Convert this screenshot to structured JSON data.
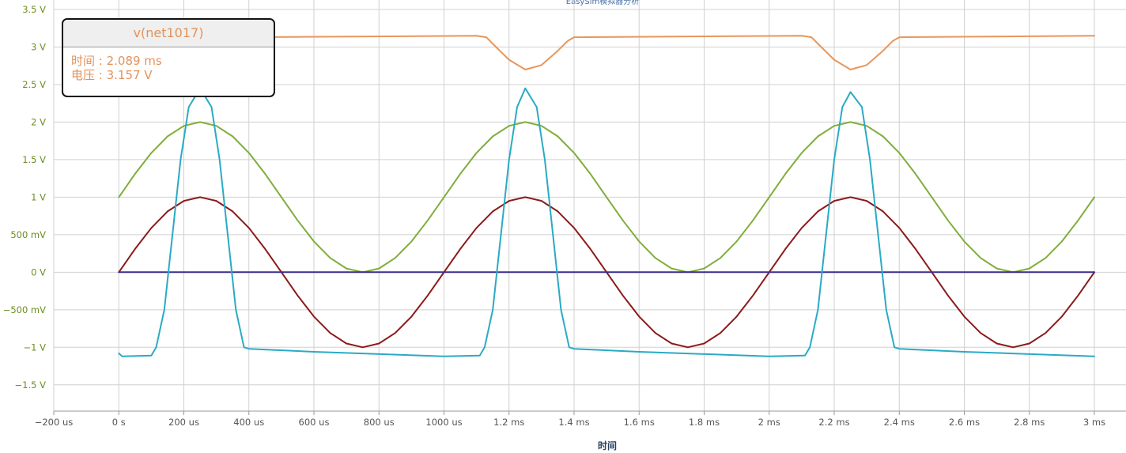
{
  "chart_data": {
    "type": "line",
    "title": "EasySim模拟器分析",
    "xlabel": "时间",
    "ylabel": "",
    "xlim": [
      -200,
      3000
    ],
    "ylim": [
      -1.85,
      3.5
    ],
    "grid": true,
    "y_ticks": [
      {
        "v": 3.5,
        "label": "3.5 V"
      },
      {
        "v": 3,
        "label": "3 V"
      },
      {
        "v": 2.5,
        "label": "2.5 V"
      },
      {
        "v": 2,
        "label": "2 V"
      },
      {
        "v": 1.5,
        "label": "1.5 V"
      },
      {
        "v": 1,
        "label": "1 V"
      },
      {
        "v": 0.5,
        "label": "500 mV"
      },
      {
        "v": 0,
        "label": "0 V"
      },
      {
        "v": -0.5,
        "label": "−500 mV"
      },
      {
        "v": -1,
        "label": "−1 V"
      },
      {
        "v": -1.5,
        "label": "−1.5 V"
      }
    ],
    "x_ticks": [
      {
        "v": -200,
        "label": "−200 us"
      },
      {
        "v": 0,
        "label": "0 s"
      },
      {
        "v": 200,
        "label": "200 us"
      },
      {
        "v": 400,
        "label": "400 us"
      },
      {
        "v": 600,
        "label": "600 us"
      },
      {
        "v": 800,
        "label": "800 us"
      },
      {
        "v": 1000,
        "label": "1000 us"
      },
      {
        "v": 1200,
        "label": "1.2 ms"
      },
      {
        "v": 1400,
        "label": "1.4 ms"
      },
      {
        "v": 1600,
        "label": "1.6 ms"
      },
      {
        "v": 1800,
        "label": "1.8 ms"
      },
      {
        "v": 2000,
        "label": "2 ms"
      },
      {
        "v": 2200,
        "label": "2.2 ms"
      },
      {
        "v": 2400,
        "label": "2.4 ms"
      },
      {
        "v": 2600,
        "label": "2.6 ms"
      },
      {
        "v": 2800,
        "label": "2.8 ms"
      },
      {
        "v": 3000,
        "label": "3 ms"
      }
    ],
    "series": [
      {
        "name": "v(net1017)",
        "color": "#e8965a",
        "points": [
          [
            400,
            3.13
          ],
          [
            1100,
            3.15
          ],
          [
            1130,
            3.13
          ],
          [
            1160,
            3.0
          ],
          [
            1200,
            2.83
          ],
          [
            1250,
            2.7
          ],
          [
            1300,
            2.76
          ],
          [
            1350,
            2.95
          ],
          [
            1380,
            3.08
          ],
          [
            1400,
            3.13
          ],
          [
            2100,
            3.15
          ],
          [
            2130,
            3.13
          ],
          [
            2160,
            3.0
          ],
          [
            2200,
            2.83
          ],
          [
            2250,
            2.7
          ],
          [
            2300,
            2.76
          ],
          [
            2350,
            2.95
          ],
          [
            2380,
            3.08
          ],
          [
            2400,
            3.13
          ],
          [
            3000,
            3.15
          ]
        ]
      },
      {
        "color": "#7fae3a",
        "points": [
          [
            0,
            1.0
          ],
          [
            50,
            1.31
          ],
          [
            100,
            1.59
          ],
          [
            150,
            1.81
          ],
          [
            200,
            1.95
          ],
          [
            250,
            2.0
          ],
          [
            300,
            1.95
          ],
          [
            350,
            1.81
          ],
          [
            400,
            1.59
          ],
          [
            450,
            1.31
          ],
          [
            500,
            1.0
          ],
          [
            550,
            0.69
          ],
          [
            600,
            0.41
          ],
          [
            650,
            0.19
          ],
          [
            700,
            0.05
          ],
          [
            750,
            0.0
          ],
          [
            800,
            0.05
          ],
          [
            850,
            0.19
          ],
          [
            900,
            0.41
          ],
          [
            950,
            0.69
          ],
          [
            1000,
            1.0
          ],
          [
            1050,
            1.31
          ],
          [
            1100,
            1.59
          ],
          [
            1150,
            1.81
          ],
          [
            1200,
            1.95
          ],
          [
            1250,
            2.0
          ],
          [
            1300,
            1.95
          ],
          [
            1350,
            1.81
          ],
          [
            1400,
            1.59
          ],
          [
            1450,
            1.31
          ],
          [
            1500,
            1.0
          ],
          [
            1550,
            0.69
          ],
          [
            1600,
            0.41
          ],
          [
            1650,
            0.19
          ],
          [
            1700,
            0.05
          ],
          [
            1750,
            0.0
          ],
          [
            1800,
            0.05
          ],
          [
            1850,
            0.19
          ],
          [
            1900,
            0.41
          ],
          [
            1950,
            0.69
          ],
          [
            2000,
            1.0
          ],
          [
            2050,
            1.31
          ],
          [
            2100,
            1.59
          ],
          [
            2150,
            1.81
          ],
          [
            2200,
            1.95
          ],
          [
            2250,
            2.0
          ],
          [
            2300,
            1.95
          ],
          [
            2350,
            1.81
          ],
          [
            2400,
            1.59
          ],
          [
            2450,
            1.31
          ],
          [
            2500,
            1.0
          ],
          [
            2550,
            0.69
          ],
          [
            2600,
            0.41
          ],
          [
            2650,
            0.19
          ],
          [
            2700,
            0.05
          ],
          [
            2750,
            0.0
          ],
          [
            2800,
            0.05
          ],
          [
            2850,
            0.19
          ],
          [
            2900,
            0.41
          ],
          [
            2950,
            0.69
          ],
          [
            3000,
            1.0
          ]
        ]
      },
      {
        "color": "#8b1a1a",
        "points": [
          [
            0,
            0.0
          ],
          [
            50,
            0.31
          ],
          [
            100,
            0.59
          ],
          [
            150,
            0.81
          ],
          [
            200,
            0.95
          ],
          [
            250,
            1.0
          ],
          [
            300,
            0.95
          ],
          [
            350,
            0.81
          ],
          [
            400,
            0.59
          ],
          [
            450,
            0.31
          ],
          [
            500,
            0.0
          ],
          [
            550,
            -0.31
          ],
          [
            600,
            -0.59
          ],
          [
            650,
            -0.81
          ],
          [
            700,
            -0.95
          ],
          [
            750,
            -1.0
          ],
          [
            800,
            -0.95
          ],
          [
            850,
            -0.81
          ],
          [
            900,
            -0.59
          ],
          [
            950,
            -0.31
          ],
          [
            1000,
            0.0
          ],
          [
            1050,
            0.31
          ],
          [
            1100,
            0.59
          ],
          [
            1150,
            0.81
          ],
          [
            1200,
            0.95
          ],
          [
            1250,
            1.0
          ],
          [
            1300,
            0.95
          ],
          [
            1350,
            0.81
          ],
          [
            1400,
            0.59
          ],
          [
            1450,
            0.31
          ],
          [
            1500,
            0.0
          ],
          [
            1550,
            -0.31
          ],
          [
            1600,
            -0.59
          ],
          [
            1650,
            -0.81
          ],
          [
            1700,
            -0.95
          ],
          [
            1750,
            -1.0
          ],
          [
            1800,
            -0.95
          ],
          [
            1850,
            -0.81
          ],
          [
            1900,
            -0.59
          ],
          [
            1950,
            -0.31
          ],
          [
            2000,
            0.0
          ],
          [
            2050,
            0.31
          ],
          [
            2100,
            0.59
          ],
          [
            2150,
            0.81
          ],
          [
            2200,
            0.95
          ],
          [
            2250,
            1.0
          ],
          [
            2300,
            0.95
          ],
          [
            2350,
            0.81
          ],
          [
            2400,
            0.59
          ],
          [
            2450,
            0.31
          ],
          [
            2500,
            0.0
          ],
          [
            2550,
            -0.31
          ],
          [
            2600,
            -0.59
          ],
          [
            2650,
            -0.81
          ],
          [
            2700,
            -0.95
          ],
          [
            2750,
            -1.0
          ],
          [
            2800,
            -0.95
          ],
          [
            2850,
            -0.81
          ],
          [
            2900,
            -0.59
          ],
          [
            2950,
            -0.31
          ],
          [
            3000,
            0.0
          ]
        ]
      },
      {
        "color": "#3a2e8c",
        "points": [
          [
            0,
            0.0
          ],
          [
            3000,
            0.0
          ]
        ]
      },
      {
        "color": "#2aaac4",
        "points": [
          [
            0,
            -1.08
          ],
          [
            10,
            -1.12
          ],
          [
            100,
            -1.11
          ],
          [
            115,
            -1.0
          ],
          [
            140,
            -0.5
          ],
          [
            165,
            0.5
          ],
          [
            190,
            1.5
          ],
          [
            215,
            2.2
          ],
          [
            250,
            2.45
          ],
          [
            285,
            2.2
          ],
          [
            310,
            1.5
          ],
          [
            335,
            0.5
          ],
          [
            360,
            -0.5
          ],
          [
            385,
            -1.0
          ],
          [
            400,
            -1.02
          ],
          [
            600,
            -1.06
          ],
          [
            1000,
            -1.12
          ],
          [
            1110,
            -1.11
          ],
          [
            1125,
            -1.0
          ],
          [
            1150,
            -0.5
          ],
          [
            1175,
            0.5
          ],
          [
            1200,
            1.5
          ],
          [
            1225,
            2.2
          ],
          [
            1250,
            2.45
          ],
          [
            1285,
            2.2
          ],
          [
            1310,
            1.5
          ],
          [
            1335,
            0.5
          ],
          [
            1360,
            -0.5
          ],
          [
            1385,
            -1.0
          ],
          [
            1400,
            -1.02
          ],
          [
            1600,
            -1.06
          ],
          [
            2000,
            -1.12
          ],
          [
            2110,
            -1.11
          ],
          [
            2125,
            -1.0
          ],
          [
            2150,
            -0.5
          ],
          [
            2175,
            0.5
          ],
          [
            2200,
            1.5
          ],
          [
            2225,
            2.2
          ],
          [
            2250,
            2.4
          ],
          [
            2285,
            2.2
          ],
          [
            2310,
            1.5
          ],
          [
            2335,
            0.5
          ],
          [
            2360,
            -0.5
          ],
          [
            2385,
            -1.0
          ],
          [
            2400,
            -1.02
          ],
          [
            2600,
            -1.06
          ],
          [
            3000,
            -1.12
          ]
        ]
      }
    ]
  },
  "tooltip": {
    "title": "v(net1017)",
    "time_line": "时间 : 2.089 ms",
    "voltage_line": "电压 : 3.157 V"
  },
  "colors": {
    "grid": "#d0d0d0",
    "axis": "#999999",
    "y_tick_text": "#6b8e23"
  }
}
